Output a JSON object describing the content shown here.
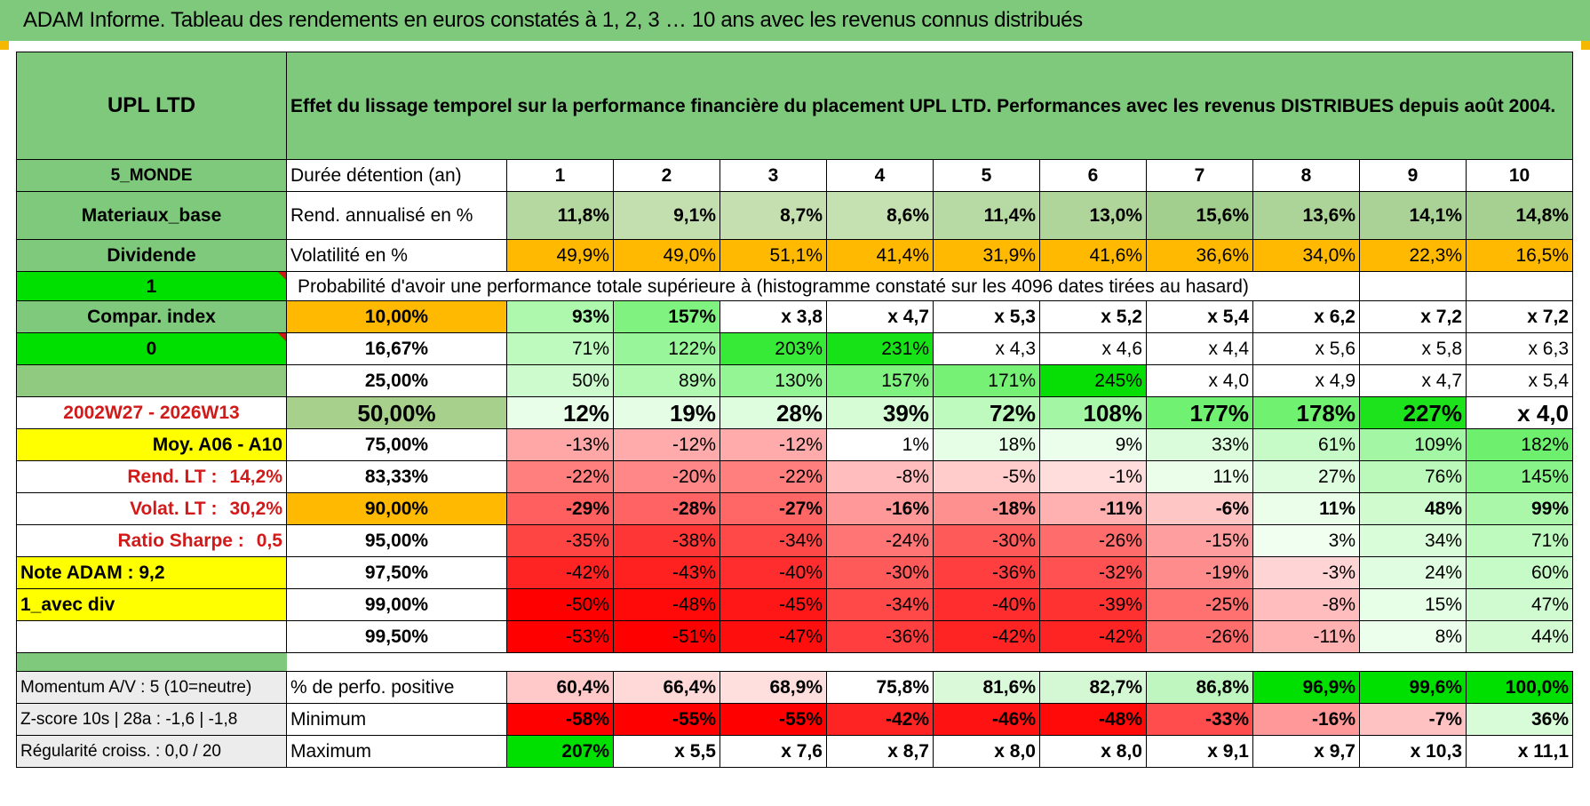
{
  "banner": "ADAM Informe. Tableau des rendements en euros constatés à 1, 2, 3 … 10 ans avec les revenus connus distribués",
  "colors": {
    "banner": "#7ec97c",
    "header": "#7ec97c",
    "yellow": "#ffff00",
    "orange": "#ffb900",
    "bright_green": "#00e000",
    "red_text": "#d21a1a"
  },
  "left_panel": {
    "name": "UPL LTD",
    "zone": "5_MONDE",
    "sector": "Materiaux_base",
    "type": "Dividende",
    "input1": "1",
    "compar": "Compar. index",
    "input2": "0",
    "period": "2002W27 - 2026W13",
    "moy": "Moy. A06 - A10",
    "rend_label": "Rend. LT :",
    "rend_value": "14,2%",
    "volat_label": "Volat. LT :",
    "volat_value": "30,2%",
    "sharpe_label": "Ratio Sharpe :",
    "sharpe_value": "0,5",
    "note": "Note ADAM : 9,2",
    "div": "1_avec div",
    "momentum": "Momentum A/V : 5 (10=neutre)",
    "zscore": "Z-score 10s | 28a : -1,6 | -1,8",
    "regularite": "Régularité croiss. : 0,0 / 20"
  },
  "header_title": "Effet du lissage temporel sur la performance financière du placement UPL LTD. Performances avec les revenus DISTRIBUES depuis août 2004.",
  "duree_label": "Durée détention (an)",
  "years": [
    "1",
    "2",
    "3",
    "4",
    "5",
    "6",
    "7",
    "8",
    "9",
    "10"
  ],
  "rend_label": "Rend. annualisé en %",
  "rend": [
    "11,8%",
    "9,1%",
    "8,7%",
    "8,6%",
    "11,4%",
    "13,0%",
    "15,6%",
    "13,6%",
    "14,1%",
    "14,8%"
  ],
  "volat_label": "Volatilité en %",
  "volat": [
    "49,9%",
    "49,0%",
    "51,1%",
    "41,4%",
    "31,9%",
    "41,6%",
    "36,6%",
    "34,0%",
    "22,3%",
    "16,5%"
  ],
  "prob_title": "Probabilité d'avoir une performance totale supérieure à (histogramme constaté sur les 4096 dates tirées au hasard)",
  "percentile_rows": [
    {
      "p": "10,00%",
      "v": [
        "93%",
        "157%",
        "x 3,8",
        "x 4,7",
        "x 5,3",
        "x 5,2",
        "x 5,4",
        "x 6,2",
        "x 7,2",
        "x 7,2"
      ]
    },
    {
      "p": "16,67%",
      "v": [
        "71%",
        "122%",
        "203%",
        "231%",
        "x 4,3",
        "x 4,6",
        "x 4,4",
        "x 5,6",
        "x 5,8",
        "x 6,3"
      ]
    },
    {
      "p": "25,00%",
      "v": [
        "50%",
        "89%",
        "130%",
        "157%",
        "171%",
        "245%",
        "x 4,0",
        "x 4,9",
        "x 4,7",
        "x 5,4"
      ]
    },
    {
      "p": "50,00%",
      "v": [
        "12%",
        "19%",
        "28%",
        "39%",
        "72%",
        "108%",
        "177%",
        "178%",
        "227%",
        "x 4,0"
      ]
    },
    {
      "p": "75,00%",
      "v": [
        "-13%",
        "-12%",
        "-12%",
        "1%",
        "18%",
        "9%",
        "33%",
        "61%",
        "109%",
        "182%"
      ]
    },
    {
      "p": "83,33%",
      "v": [
        "-22%",
        "-20%",
        "-22%",
        "-8%",
        "-5%",
        "-1%",
        "11%",
        "27%",
        "76%",
        "145%"
      ]
    },
    {
      "p": "90,00%",
      "v": [
        "-29%",
        "-28%",
        "-27%",
        "-16%",
        "-18%",
        "-11%",
        "-6%",
        "11%",
        "48%",
        "99%"
      ]
    },
    {
      "p": "95,00%",
      "v": [
        "-35%",
        "-38%",
        "-34%",
        "-24%",
        "-30%",
        "-26%",
        "-15%",
        "3%",
        "34%",
        "71%"
      ]
    },
    {
      "p": "97,50%",
      "v": [
        "-42%",
        "-43%",
        "-40%",
        "-30%",
        "-36%",
        "-32%",
        "-19%",
        "-3%",
        "24%",
        "60%"
      ]
    },
    {
      "p": "99,00%",
      "v": [
        "-50%",
        "-48%",
        "-45%",
        "-34%",
        "-40%",
        "-39%",
        "-25%",
        "-8%",
        "15%",
        "47%"
      ]
    },
    {
      "p": "99,50%",
      "v": [
        "-53%",
        "-51%",
        "-47%",
        "-36%",
        "-42%",
        "-42%",
        "-26%",
        "-11%",
        "8%",
        "44%"
      ]
    }
  ],
  "perfo_label": "% de perfo. positive",
  "perfo": [
    "60,4%",
    "66,4%",
    "68,9%",
    "75,8%",
    "81,6%",
    "82,7%",
    "86,8%",
    "96,9%",
    "99,6%",
    "100,0%"
  ],
  "min_label": "Minimum",
  "min": [
    "-58%",
    "-55%",
    "-55%",
    "-42%",
    "-46%",
    "-48%",
    "-33%",
    "-16%",
    "-7%",
    "36%"
  ],
  "max_label": "Maximum",
  "max": [
    "207%",
    "x 5,5",
    "x 7,6",
    "x 8,7",
    "x 8,0",
    "x 8,0",
    "x 9,1",
    "x 9,7",
    "x 10,3",
    "x 11,1"
  ]
}
